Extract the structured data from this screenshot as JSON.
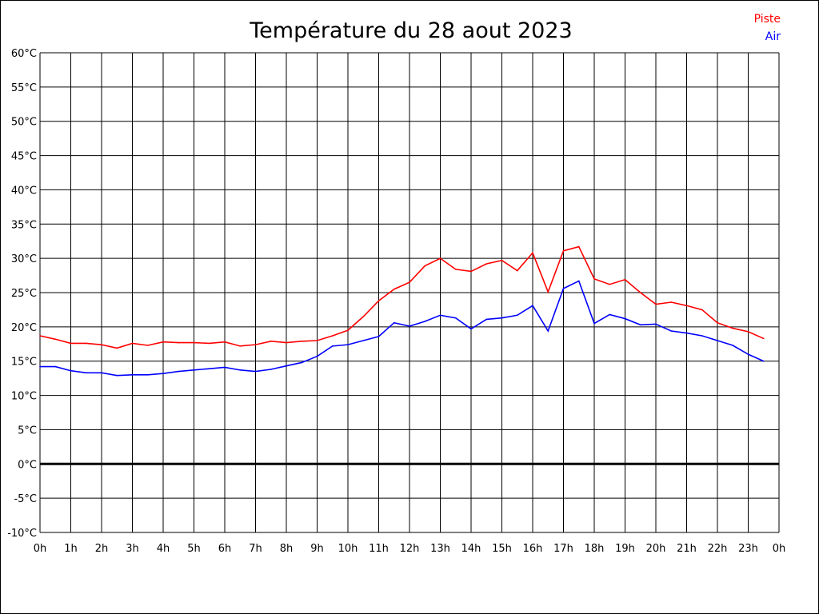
{
  "chart_data": {
    "type": "line",
    "title": "Température du 28 aout 2023",
    "xlabel": "",
    "ylabel": "",
    "x_tick_labels": [
      "0h",
      "1h",
      "2h",
      "3h",
      "4h",
      "5h",
      "6h",
      "7h",
      "8h",
      "9h",
      "10h",
      "11h",
      "12h",
      "13h",
      "14h",
      "15h",
      "16h",
      "17h",
      "18h",
      "19h",
      "20h",
      "21h",
      "22h",
      "23h",
      "0h"
    ],
    "y_tick_labels": [
      "-10°C",
      "-5°C",
      "0°C",
      "5°C",
      "10°C",
      "15°C",
      "20°C",
      "25°C",
      "30°C",
      "35°C",
      "40°C",
      "45°C",
      "50°C",
      "55°C",
      "60°C"
    ],
    "xlim": [
      0,
      24
    ],
    "ylim": [
      -10,
      60
    ],
    "grid": true,
    "legend_position": "top-right",
    "x": [
      0,
      0.5,
      1,
      1.5,
      2,
      2.5,
      3,
      3.5,
      4,
      4.5,
      5,
      5.5,
      6,
      6.5,
      7,
      7.5,
      8,
      8.5,
      9,
      9.5,
      10,
      10.5,
      11,
      11.5,
      12,
      12.5,
      13,
      13.5,
      14,
      14.5,
      15,
      15.5,
      16,
      16.5,
      17,
      17.5,
      18,
      18.5,
      19,
      19.5,
      20,
      20.5,
      21,
      21.5,
      22,
      22.5,
      23,
      23.5
    ],
    "series": [
      {
        "name": "Piste",
        "color": "#ff0000",
        "values": [
          18.7,
          18.2,
          17.6,
          17.6,
          17.4,
          16.9,
          17.6,
          17.3,
          17.8,
          17.7,
          17.7,
          17.6,
          17.8,
          17.2,
          17.4,
          17.9,
          17.7,
          17.9,
          18.0,
          18.7,
          19.5,
          21.5,
          23.8,
          25.5,
          26.5,
          28.9,
          30.0,
          28.4,
          28.1,
          29.2,
          29.7,
          28.2,
          30.8,
          25.1,
          31.1,
          31.7,
          27.0,
          26.2,
          26.9,
          25.0,
          23.3,
          23.6,
          23.1,
          22.5,
          20.6,
          19.8,
          19.3,
          18.3
        ]
      },
      {
        "name": "Air",
        "color": "#0000ff",
        "values": [
          14.2,
          14.2,
          13.6,
          13.3,
          13.3,
          12.9,
          13.0,
          13.0,
          13.2,
          13.5,
          13.7,
          13.9,
          14.1,
          13.7,
          13.5,
          13.8,
          14.3,
          14.8,
          15.7,
          17.2,
          17.4,
          18.0,
          18.6,
          20.6,
          20.1,
          20.8,
          21.7,
          21.3,
          19.7,
          21.1,
          21.3,
          21.7,
          23.1,
          19.4,
          25.6,
          26.7,
          20.5,
          21.8,
          21.2,
          20.3,
          20.4,
          19.4,
          19.1,
          18.7,
          18.0,
          17.3,
          16.0,
          15.0
        ]
      }
    ]
  }
}
